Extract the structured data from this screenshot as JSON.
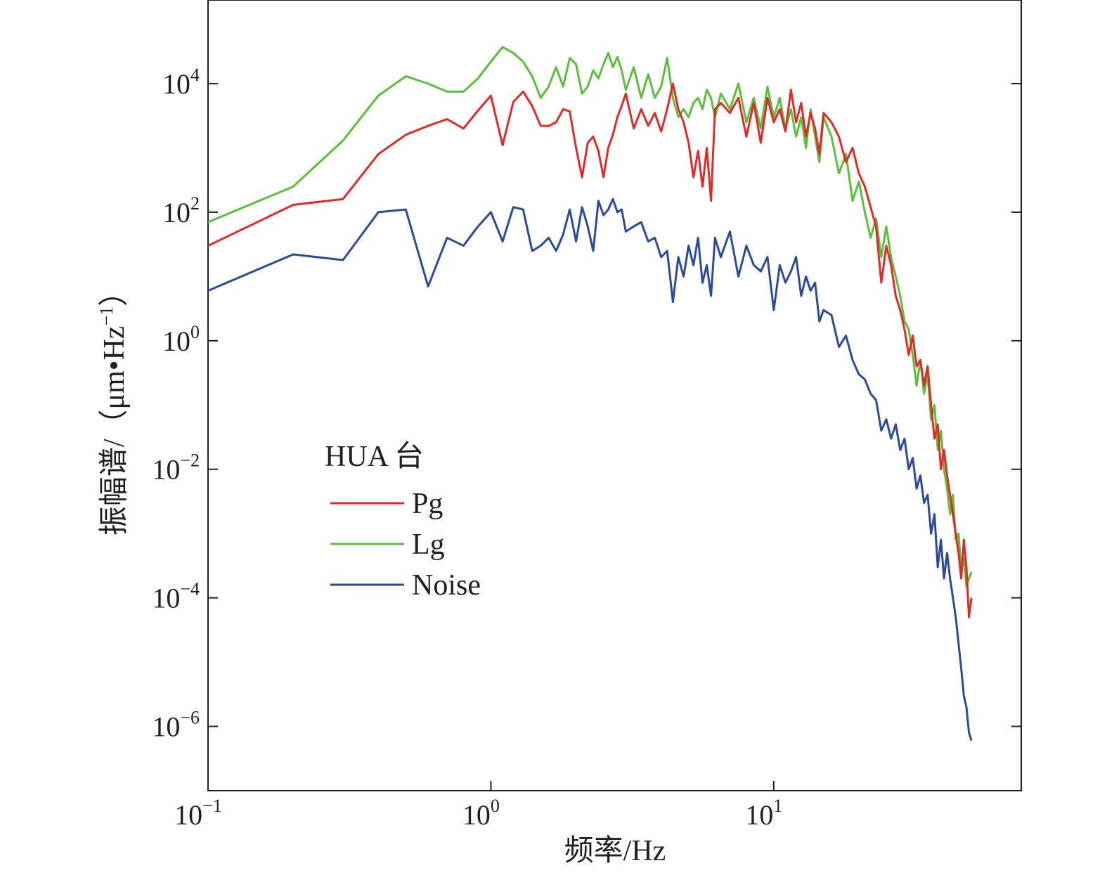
{
  "chart_data": {
    "type": "line",
    "xlabel": "频率/Hz",
    "ylabel": "振幅谱/（μm•Hz",
    "ylabel_exp": "−1",
    "ylabel_close": "）",
    "x_scale": "log",
    "y_scale": "log",
    "xlim": [
      0.1,
      75
    ],
    "ylim": [
      1e-07,
      200000.0
    ],
    "x_ticks": [
      {
        "value": 0.1,
        "base": "10",
        "exp": "−1"
      },
      {
        "value": 1,
        "base": "10",
        "exp": "0"
      },
      {
        "value": 10,
        "base": "10",
        "exp": "1"
      }
    ],
    "y_ticks": [
      {
        "value": 1e-06,
        "base": "10",
        "exp": "−6"
      },
      {
        "value": 0.0001,
        "base": "10",
        "exp": "−4"
      },
      {
        "value": 0.01,
        "base": "10",
        "exp": "−2"
      },
      {
        "value": 1,
        "base": "10",
        "exp": "0"
      },
      {
        "value": 100.0,
        "base": "10",
        "exp": "2"
      },
      {
        "value": 10000.0,
        "base": "10",
        "exp": "4"
      }
    ],
    "grid": false,
    "legend": {
      "title": "HUA 台",
      "position": "middle-left",
      "entries": [
        "Pg",
        "Lg",
        "Noise"
      ]
    },
    "series": [
      {
        "name": "Pg",
        "color": "#e02a2a",
        "x": [
          0.1,
          0.2,
          0.3,
          0.4,
          0.5,
          0.6,
          0.7,
          0.8,
          0.9,
          1.0,
          1.1,
          1.2,
          1.3,
          1.4,
          1.5,
          1.6,
          1.7,
          1.8,
          1.9,
          2.0,
          2.1,
          2.2,
          2.3,
          2.4,
          2.5,
          2.6,
          2.7,
          2.8,
          2.9,
          3.0,
          3.2,
          3.4,
          3.6,
          3.8,
          4.0,
          4.2,
          4.4,
          4.6,
          4.8,
          5.0,
          5.2,
          5.4,
          5.6,
          5.8,
          6.0,
          6.2,
          6.5,
          7.0,
          7.5,
          8.0,
          8.5,
          9.0,
          9.5,
          10.0,
          10.5,
          11.0,
          11.5,
          12.0,
          12.5,
          13.0,
          13.5,
          14.0,
          14.5,
          15.0,
          16.0,
          17.0,
          18.0,
          19.0,
          20.0,
          21.0,
          22.0,
          23.0,
          24.0,
          25.0,
          26.0,
          27.0,
          28.0,
          29.0,
          30.0,
          31.0,
          32.0,
          33.0,
          34.0,
          35.0,
          36.0,
          37.0,
          38.0,
          39.0,
          40.0,
          41.0,
          42.0,
          43.0,
          44.0,
          45.0,
          46.0,
          47.0,
          48.0,
          49.0,
          50.0
        ],
        "values": [
          30,
          130,
          160,
          800,
          1600,
          2200,
          2800,
          2000,
          3800,
          6500,
          1100,
          5200,
          7500,
          4500,
          2200,
          2200,
          2500,
          4000,
          3700,
          1000,
          350,
          1200,
          1500,
          900,
          350,
          1000,
          1600,
          3000,
          4500,
          7000,
          2000,
          4000,
          2200,
          3500,
          1800,
          4000,
          10000,
          4000,
          2500,
          1200,
          350,
          900,
          250,
          1000,
          150,
          4000,
          5000,
          3500,
          6000,
          1500,
          5000,
          1200,
          6000,
          2500,
          4000,
          1800,
          8000,
          2500,
          5000,
          1500,
          3500,
          2000,
          800,
          3500,
          2500,
          1500,
          600,
          1000,
          400,
          250,
          120,
          60,
          8,
          30,
          15,
          5,
          3,
          1.5,
          0.6,
          1.2,
          0.4,
          0.5,
          0.2,
          0.4,
          0.1,
          0.03,
          0.05,
          0.01,
          0.02,
          0.008,
          0.004,
          0.002,
          0.001,
          0.0005,
          0.0002,
          0.0008,
          0.0003,
          5e-05,
          0.0001
        ]
      },
      {
        "name": "Lg",
        "color": "#5cbf3c",
        "x": [
          0.1,
          0.2,
          0.3,
          0.4,
          0.5,
          0.6,
          0.7,
          0.8,
          0.9,
          1.0,
          1.1,
          1.2,
          1.3,
          1.4,
          1.5,
          1.6,
          1.7,
          1.8,
          1.9,
          2.0,
          2.1,
          2.2,
          2.3,
          2.4,
          2.5,
          2.6,
          2.7,
          2.8,
          2.9,
          3.0,
          3.2,
          3.4,
          3.6,
          3.8,
          4.0,
          4.2,
          4.4,
          4.6,
          4.8,
          5.0,
          5.2,
          5.4,
          5.6,
          5.8,
          6.0,
          6.2,
          6.5,
          7.0,
          7.5,
          8.0,
          8.5,
          9.0,
          9.5,
          10.0,
          10.5,
          11.0,
          11.5,
          12.0,
          12.5,
          13.0,
          13.5,
          14.0,
          14.5,
          15.0,
          16.0,
          17.0,
          18.0,
          19.0,
          20.0,
          21.0,
          22.0,
          23.0,
          24.0,
          25.0,
          26.0,
          27.0,
          28.0,
          29.0,
          30.0,
          31.0,
          32.0,
          33.0,
          34.0,
          35.0,
          36.0,
          37.0,
          38.0,
          39.0,
          40.0,
          41.0,
          42.0,
          43.0,
          44.0,
          45.0,
          46.0,
          47.0,
          48.0,
          49.0,
          50.0
        ],
        "values": [
          70,
          250,
          1300,
          6500,
          13000,
          10000,
          7500,
          7500,
          12000,
          22000,
          37000,
          30000,
          22000,
          13000,
          6000,
          9000,
          18000,
          9000,
          25000,
          20000,
          7000,
          9000,
          16000,
          12000,
          20000,
          30000,
          18000,
          26000,
          16000,
          8000,
          18000,
          6000,
          14000,
          6000,
          9000,
          25000,
          6000,
          3000,
          4000,
          3000,
          5000,
          6000,
          4000,
          8000,
          6000,
          3000,
          7000,
          4000,
          10000,
          2500,
          6000,
          2000,
          9000,
          3000,
          6000,
          2000,
          4000,
          1500,
          3000,
          1000,
          4000,
          1500,
          600,
          3000,
          1500,
          400,
          800,
          150,
          300,
          100,
          40,
          80,
          20,
          60,
          20,
          10,
          5,
          2,
          1.5,
          0.6,
          0.2,
          0.5,
          0.15,
          0.3,
          0.06,
          0.1,
          0.02,
          0.04,
          0.01,
          0.005,
          0.002,
          0.004,
          0.0008,
          0.001,
          0.0003,
          0.0004,
          0.00015,
          0.0002,
          0.00025
        ]
      },
      {
        "name": "Noise",
        "color": "#2c4a9a",
        "x": [
          0.1,
          0.2,
          0.3,
          0.4,
          0.5,
          0.6,
          0.7,
          0.8,
          0.9,
          1.0,
          1.1,
          1.2,
          1.3,
          1.4,
          1.5,
          1.6,
          1.7,
          1.8,
          1.9,
          2.0,
          2.1,
          2.2,
          2.3,
          2.4,
          2.5,
          2.6,
          2.7,
          2.8,
          2.9,
          3.0,
          3.2,
          3.4,
          3.6,
          3.8,
          4.0,
          4.2,
          4.4,
          4.6,
          4.8,
          5.0,
          5.2,
          5.4,
          5.6,
          5.8,
          6.0,
          6.2,
          6.5,
          7.0,
          7.5,
          8.0,
          8.5,
          9.0,
          9.5,
          10.0,
          10.5,
          11.0,
          11.5,
          12.0,
          12.5,
          13.0,
          13.5,
          14.0,
          14.5,
          15.0,
          16.0,
          17.0,
          18.0,
          19.0,
          20.0,
          21.0,
          22.0,
          23.0,
          24.0,
          25.0,
          26.0,
          27.0,
          28.0,
          29.0,
          30.0,
          31.0,
          32.0,
          33.0,
          34.0,
          35.0,
          36.0,
          37.0,
          38.0,
          39.0,
          40.0,
          41.0,
          42.0,
          43.0,
          44.0,
          45.0,
          46.0,
          47.0,
          48.0,
          49.0,
          50.0
        ],
        "values": [
          6,
          22,
          18,
          100,
          110,
          7,
          40,
          30,
          60,
          100,
          35,
          120,
          110,
          25,
          30,
          40,
          25,
          45,
          110,
          35,
          120,
          60,
          25,
          150,
          90,
          110,
          160,
          100,
          110,
          50,
          60,
          70,
          35,
          40,
          20,
          25,
          4,
          20,
          10,
          30,
          15,
          40,
          8,
          15,
          5,
          40,
          20,
          50,
          10,
          30,
          15,
          12,
          20,
          3,
          15,
          8,
          12,
          20,
          5,
          10,
          6,
          8,
          2,
          3,
          2.5,
          0.8,
          1.2,
          0.5,
          0.3,
          0.25,
          0.15,
          0.12,
          0.04,
          0.06,
          0.03,
          0.05,
          0.02,
          0.03,
          0.01,
          0.015,
          0.005,
          0.008,
          0.003,
          0.004,
          0.001,
          0.002,
          0.0003,
          0.0008,
          0.0002,
          0.0005,
          0.0002,
          0.0001,
          5e-05,
          2e-05,
          8e-06,
          3e-06,
          2e-06,
          8e-07,
          6e-07
        ]
      }
    ]
  }
}
